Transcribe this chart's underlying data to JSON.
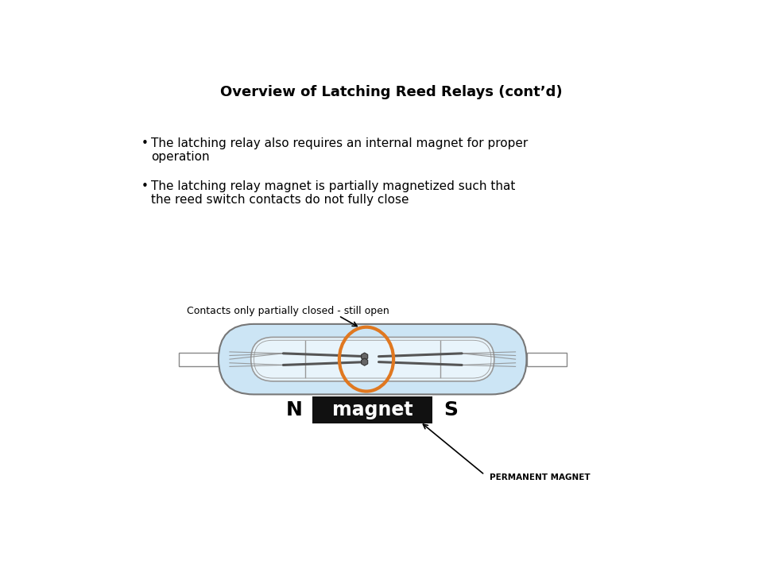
{
  "title": "Overview of Latching Reed Relays (cont’d)",
  "bullet1_line1": "The latching relay also requires an internal magnet for proper",
  "bullet1_line2": "operation",
  "bullet2_line1": "The latching relay magnet is partially magnetized such that",
  "bullet2_line2": "the reed switch contacts do not fully close",
  "annotation1": "Contacts only partially closed - still open",
  "annotation2": "PERMANENT MAGNET",
  "label_N": "N",
  "label_S": "S",
  "label_magnet": "magnet",
  "bg_color": "#ffffff",
  "text_color": "#000000",
  "body_fill": "#cce5f5",
  "body_stroke": "#777777",
  "glass_fill": "#e8f4fb",
  "glass_stroke": "#999999",
  "magnet_fill": "#111111",
  "magnet_text_color": "#ffffff",
  "circle_color": "#e07820",
  "contact_color": "#666666",
  "wire_color": "#888888",
  "lead_fill": "#ffffff",
  "lead_stroke": "#888888"
}
